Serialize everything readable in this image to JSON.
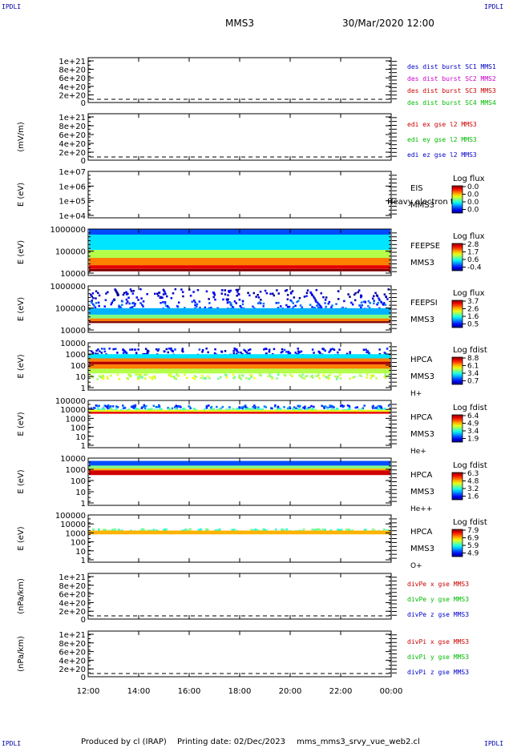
{
  "header": {
    "corner_label": "IPDLI",
    "mission": "MMS3",
    "datetime": "30/Mar/2020 12:00"
  },
  "footer": {
    "produced_by": "Produced by cl (IRAP)",
    "printing_date": "Printing date: 02/Dec/2023",
    "script_name": "mms_mms3_srvy_vue_web2.cl"
  },
  "colors": {
    "red": "#cc0000",
    "green": "#00bb00",
    "blue": "#0000cc",
    "magenta": "#cc00cc"
  },
  "chart_data": {
    "type": "heatmap",
    "xaxis": {
      "ticks": [
        "12:00",
        "14:00",
        "16:00",
        "18:00",
        "20:00",
        "22:00",
        "00:00"
      ],
      "range_hours": [
        12,
        24
      ]
    },
    "panels": [
      {
        "id": "dist-burst",
        "kind": "line",
        "ylabel": "",
        "yticks": [
          "1e+21",
          "8e+20",
          "6e+20",
          "4e+20",
          "2e+20",
          "0"
        ],
        "legend": [
          {
            "text": "des dist burst SC1 MMS1",
            "color": "#0000cc"
          },
          {
            "text": "des dist burst SC2 MMS2",
            "color": "#cc00cc"
          },
          {
            "text": "des dist burst SC3 MMS3",
            "color": "#cc0000"
          },
          {
            "text": "des dist burst SC4 MMS4",
            "color": "#00bb00"
          }
        ]
      },
      {
        "id": "edi",
        "kind": "line",
        "ylabel": "(mV/m)",
        "yticks": [
          "1e+21",
          "8e+20",
          "6e+20",
          "4e+20",
          "2e+20",
          "0"
        ],
        "legend": [
          {
            "text": "edi ex gse l2 MMS3",
            "color": "#cc0000"
          },
          {
            "text": "edi ey gse l2 MMS3",
            "color": "#00bb00"
          },
          {
            "text": "edi ez gse l2 MMS3",
            "color": "#0000cc"
          }
        ]
      },
      {
        "id": "eis",
        "kind": "spectro",
        "ylabel": "E (eV)",
        "yticks": [
          "1e+07",
          "1e+06",
          "1e+05",
          "1e+04"
        ],
        "right_labels": [
          "EIS",
          "MMS3"
        ],
        "overlay_text": "Heavy electron to",
        "cbar_title": "Log flux",
        "cbar_values": [
          "0.0",
          "0.0",
          "0.0",
          "0.0"
        ],
        "spectrum": []
      },
      {
        "id": "feepse",
        "kind": "spectro",
        "ylabel": "E (eV)",
        "yticks": [
          "1000000",
          "100000",
          "10000"
        ],
        "right_labels": [
          "FEEPSE",
          "MMS3"
        ],
        "cbar_title": "Log flux",
        "cbar_values": [
          "2.8",
          "1.7",
          "0.6",
          "-0.4"
        ],
        "spectrum": [
          {
            "from_frac": 0.0,
            "to_frac": 0.12,
            "level": 0.2
          },
          {
            "from_frac": 0.12,
            "to_frac": 0.45,
            "level": 0.35
          },
          {
            "from_frac": 0.45,
            "to_frac": 0.62,
            "level": 0.55
          },
          {
            "from_frac": 0.62,
            "to_frac": 0.78,
            "level": 0.75
          },
          {
            "from_frac": 0.78,
            "to_frac": 0.86,
            "level": 0.9
          },
          {
            "from_frac": 0.86,
            "to_frac": 0.91,
            "level": 1.0
          }
        ]
      },
      {
        "id": "feepsi",
        "kind": "spectro",
        "ylabel": "E (eV)",
        "yticks": [
          "1000000",
          "100000",
          "10000"
        ],
        "right_labels": [
          "FEEPSI",
          "MMS3"
        ],
        "cbar_title": "Log flux",
        "cbar_values": [
          "3.7",
          "2.6",
          "1.6",
          "0.5"
        ],
        "spectrum": [
          {
            "from_frac": 0.05,
            "to_frac": 0.3,
            "level": 0.08,
            "sparse": true
          },
          {
            "from_frac": 0.3,
            "to_frac": 0.48,
            "level": 0.18,
            "sparse": true
          },
          {
            "from_frac": 0.48,
            "to_frac": 0.62,
            "level": 0.3
          },
          {
            "from_frac": 0.62,
            "to_frac": 0.7,
            "level": 0.5
          },
          {
            "from_frac": 0.7,
            "to_frac": 0.76,
            "level": 0.75
          },
          {
            "from_frac": 0.76,
            "to_frac": 0.8,
            "level": 1.0
          }
        ]
      },
      {
        "id": "hpca-h",
        "kind": "spectro",
        "ylabel": "E (eV)",
        "yticks": [
          "10000",
          "1000",
          "100",
          "10",
          "1"
        ],
        "right_labels": [
          "HPCA",
          "MMS3",
          "H+"
        ],
        "cbar_title": "Log fdist",
        "cbar_values": [
          "8.8",
          "6.1",
          "3.4",
          "0.7"
        ],
        "spectrum": [
          {
            "from_frac": 0.1,
            "to_frac": 0.24,
            "level": 0.12,
            "sparse": true
          },
          {
            "from_frac": 0.24,
            "to_frac": 0.33,
            "level": 0.35
          },
          {
            "from_frac": 0.33,
            "to_frac": 0.4,
            "level": 0.75
          },
          {
            "from_frac": 0.4,
            "to_frac": 0.46,
            "level": 0.95
          },
          {
            "from_frac": 0.46,
            "to_frac": 0.55,
            "level": 0.75
          },
          {
            "from_frac": 0.55,
            "to_frac": 0.65,
            "level": 0.55
          },
          {
            "from_frac": 0.65,
            "to_frac": 0.75,
            "level": 0.55,
            "sparse": true
          }
        ]
      },
      {
        "id": "hpca-he",
        "kind": "spectro",
        "ylabel": "E (eV)",
        "yticks": [
          "100000",
          "10000",
          "1000",
          "100",
          "10",
          "1"
        ],
        "right_labels": [
          "HPCA",
          "MMS3",
          "He+"
        ],
        "cbar_title": "Log fdist",
        "cbar_values": [
          "6.4",
          "4.9",
          "3.4",
          "1.9"
        ],
        "spectrum": [
          {
            "from_frac": 0.08,
            "to_frac": 0.15,
            "level": 0.2,
            "sparse": true
          },
          {
            "from_frac": 0.15,
            "to_frac": 0.2,
            "level": 0.45,
            "sparse": true
          },
          {
            "from_frac": 0.2,
            "to_frac": 0.24,
            "level": 0.6
          },
          {
            "from_frac": 0.24,
            "to_frac": 0.28,
            "level": 0.9
          }
        ]
      },
      {
        "id": "hpca-he2",
        "kind": "spectro",
        "ylabel": "E (eV)",
        "yticks": [
          "10000",
          "1000",
          "100",
          "10",
          "1"
        ],
        "right_labels": [
          "HPCA",
          "MMS3",
          "He++"
        ],
        "cbar_title": "Log fdist",
        "cbar_values": [
          "6.3",
          "4.8",
          "3.2",
          "1.6"
        ],
        "spectrum": [
          {
            "from_frac": 0.06,
            "to_frac": 0.16,
            "level": 0.2
          },
          {
            "from_frac": 0.16,
            "to_frac": 0.22,
            "level": 0.5
          },
          {
            "from_frac": 0.22,
            "to_frac": 0.26,
            "level": 0.7
          },
          {
            "from_frac": 0.26,
            "to_frac": 0.36,
            "level": 0.92
          }
        ]
      },
      {
        "id": "hpca-o",
        "kind": "spectro",
        "ylabel": "E (eV)",
        "yticks": [
          "100000",
          "10000",
          "1000",
          "100",
          "10",
          "1"
        ],
        "right_labels": [
          "HPCA",
          "MMS3",
          "O+"
        ],
        "cbar_title": "Log fdist",
        "cbar_values": [
          "7.9",
          "6.9",
          "5.9",
          "4.9"
        ],
        "spectrum": [
          {
            "from_frac": 0.28,
            "to_frac": 0.33,
            "level": 0.45,
            "sparse": true
          },
          {
            "from_frac": 0.33,
            "to_frac": 0.41,
            "level": 0.7
          }
        ]
      },
      {
        "id": "divpe",
        "kind": "line",
        "ylabel": "(nPa/km)",
        "yticks": [
          "1e+21",
          "8e+20",
          "6e+20",
          "4e+20",
          "2e+20",
          "0"
        ],
        "legend": [
          {
            "text": "divPe x gse MMS3",
            "color": "#cc0000"
          },
          {
            "text": "divPe y gse MMS3",
            "color": "#00bb00"
          },
          {
            "text": "divPe z gse MMS3",
            "color": "#0000cc"
          }
        ]
      },
      {
        "id": "divpi",
        "kind": "line",
        "ylabel": "(nPa/km)",
        "yticks": [
          "1e+21",
          "8e+20",
          "6e+20",
          "4e+20",
          "2e+20",
          "0"
        ],
        "legend": [
          {
            "text": "divPi x gse MMS3",
            "color": "#cc0000"
          },
          {
            "text": "divPi y gse MMS3",
            "color": "#00bb00"
          },
          {
            "text": "divPi z gse MMS3",
            "color": "#0000cc"
          }
        ]
      }
    ]
  }
}
